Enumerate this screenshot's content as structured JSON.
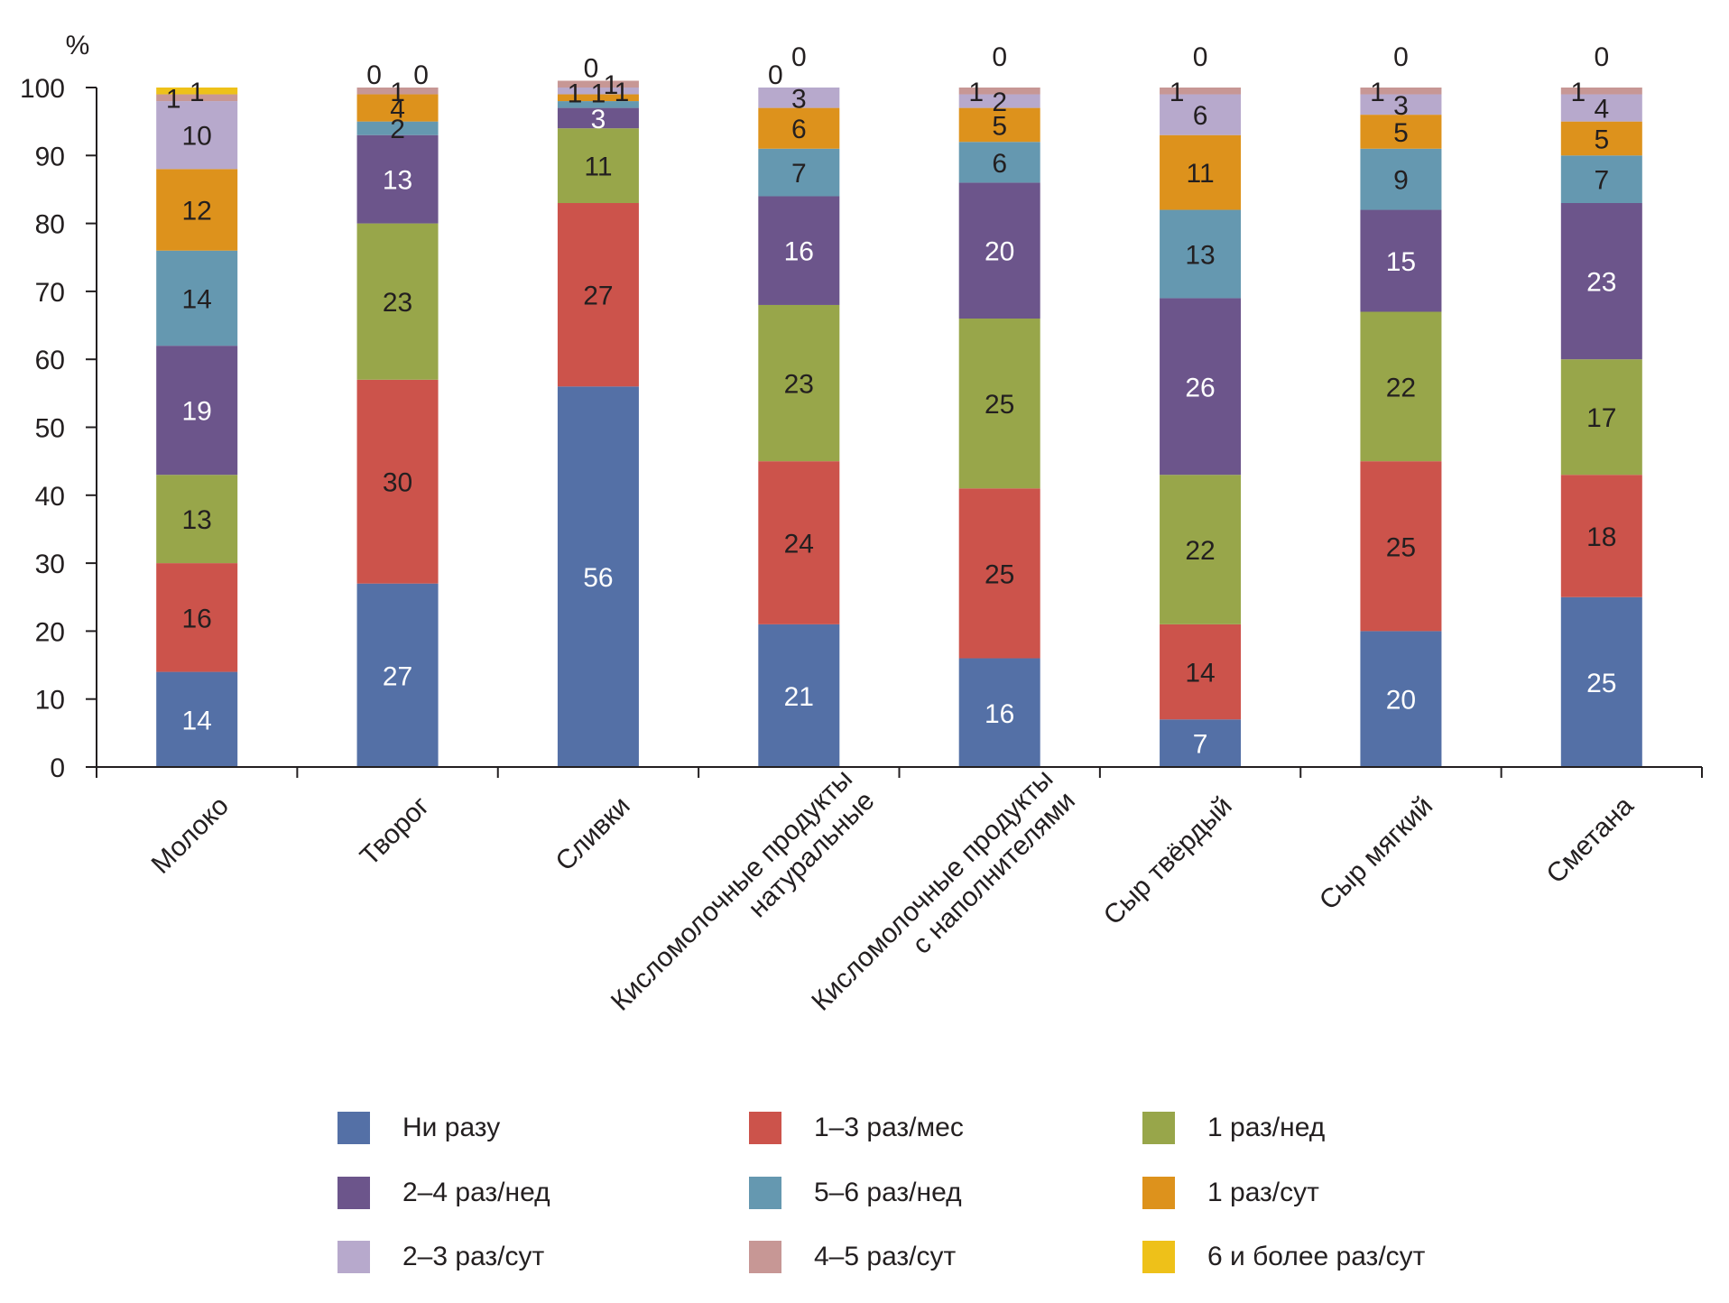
{
  "chart_data": {
    "type": "bar",
    "stacked": true,
    "title": "",
    "xlabel": "",
    "ylabel": "%",
    "ylim": [
      0,
      100
    ],
    "yticks": [
      0,
      10,
      20,
      30,
      40,
      50,
      60,
      70,
      80,
      90,
      100
    ],
    "grid": false,
    "legend_position": "bottom",
    "categories": [
      [
        "Молоко"
      ],
      [
        "Творог"
      ],
      [
        "Сливки"
      ],
      [
        "Кисломолочные продукты",
        "натуральные"
      ],
      [
        "Кисломолочные продукты",
        "с наполнителями"
      ],
      [
        "Сыр твёрдый"
      ],
      [
        "Сыр мягкий"
      ],
      [
        "Сметана"
      ]
    ],
    "series": [
      {
        "name": "Ни разу",
        "color": "#5470a6",
        "label_color": "#ffffff",
        "values": [
          14,
          27,
          56,
          21,
          16,
          7,
          20,
          25
        ]
      },
      {
        "name": "1–3 раз/мес",
        "color": "#cc534b",
        "label_color": "#231f20",
        "values": [
          16,
          30,
          27,
          24,
          25,
          14,
          25,
          18
        ]
      },
      {
        "name": "1 раз/нед",
        "color": "#98a64a",
        "label_color": "#231f20",
        "values": [
          13,
          23,
          11,
          23,
          25,
          22,
          22,
          17
        ]
      },
      {
        "name": "2–4 раз/нед",
        "color": "#6c558b",
        "label_color": "#ffffff",
        "values": [
          19,
          13,
          3,
          16,
          20,
          26,
          15,
          23
        ]
      },
      {
        "name": "5–6 раз/нед",
        "color": "#6598b0",
        "label_color": "#231f20",
        "values": [
          14,
          2,
          1,
          7,
          6,
          13,
          9,
          7
        ]
      },
      {
        "name": "1 раз/сут",
        "color": "#dd921c",
        "label_color": "#231f20",
        "values": [
          12,
          4,
          1,
          6,
          5,
          11,
          5,
          5
        ]
      },
      {
        "name": "2–3 раз/сут",
        "color": "#b7a9cc",
        "label_color": "#231f20",
        "values": [
          10,
          0,
          1,
          3,
          2,
          6,
          3,
          4
        ]
      },
      {
        "name": "4–5 раз/сут",
        "color": "#c79795",
        "label_color": "#231f20",
        "values": [
          1,
          1,
          1,
          0,
          1,
          1,
          1,
          1
        ]
      },
      {
        "name": "6 и более раз/сут",
        "color": "#eec119",
        "label_color": "#231f20",
        "values": [
          1,
          0,
          0,
          0,
          0,
          0,
          0,
          0
        ]
      }
    ]
  },
  "legend": {
    "items": [
      {
        "label": "Ни разу",
        "color": "#5470a6"
      },
      {
        "label": "1–3 раз/мес",
        "color": "#cc534b"
      },
      {
        "label": "1 раз/нед",
        "color": "#98a64a"
      },
      {
        "label": "2–4 раз/нед",
        "color": "#6c558b"
      },
      {
        "label": "5–6 раз/нед",
        "color": "#6598b0"
      },
      {
        "label": "1 раз/сут",
        "color": "#dd921c"
      },
      {
        "label": "2–3 раз/сут",
        "color": "#b7a9cc"
      },
      {
        "label": "4–5 раз/сут",
        "color": "#c79795"
      },
      {
        "label": "6 и более раз/сут",
        "color": "#eec119"
      }
    ]
  }
}
